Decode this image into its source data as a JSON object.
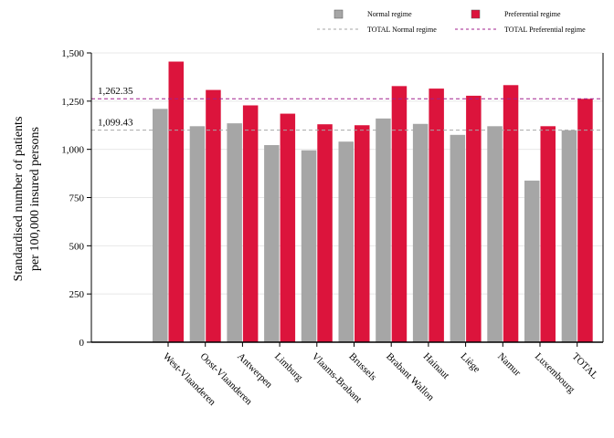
{
  "chart_data": {
    "type": "bar",
    "categories": [
      "West-Vlaanderen",
      "Oost-Vlaanderen",
      "Antwerpen",
      "Limburg",
      "Vlaams-Brabant",
      "Brussels",
      "Brabant Wallon",
      "Hainaut",
      "Liège",
      "Namur",
      "Luxembourg",
      "TOTAL"
    ],
    "series": [
      {
        "name": "Normal regime",
        "color": "#a6a6a6",
        "values": [
          1210,
          1120,
          1135,
          1022,
          995,
          1040,
          1160,
          1132,
          1075,
          1120,
          838,
          1099
        ]
      },
      {
        "name": "Preferential regime",
        "color": "#dc143c",
        "values": [
          1455,
          1308,
          1228,
          1185,
          1130,
          1125,
          1328,
          1315,
          1278,
          1333,
          1120,
          1262
        ]
      }
    ],
    "reference_lines": [
      {
        "name": "TOTAL Normal regime",
        "value": 1099.43,
        "label": "1,099.43",
        "color": "#a6a6a6"
      },
      {
        "name": "TOTAL Preferential regime",
        "value": 1262.35,
        "label": "1,262.35",
        "color": "#a0208e"
      }
    ],
    "ylabel_line1": "Standardised number of patients",
    "ylabel_line2": "per 100,000 insured persons",
    "ylim": [
      0,
      1500
    ],
    "yticks": [
      "0",
      "250",
      "500",
      "750",
      "1,000",
      "1,250",
      "1,500"
    ],
    "ytick_values": [
      0,
      250,
      500,
      750,
      1000,
      1250,
      1500
    ],
    "grid": true,
    "legend_position": "top-right"
  }
}
